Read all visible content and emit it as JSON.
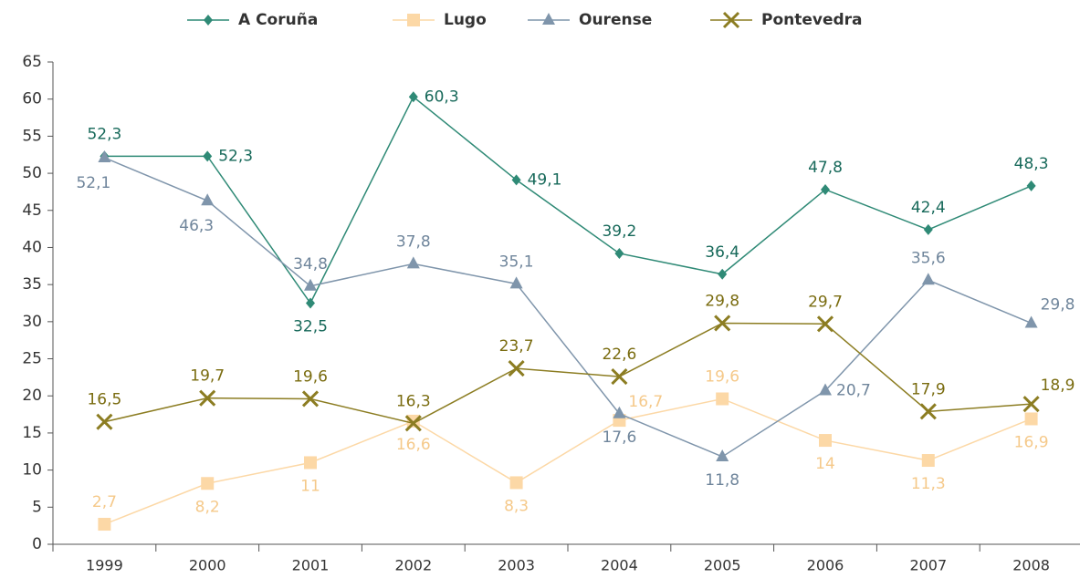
{
  "chart_data": {
    "type": "line",
    "categories": [
      "1999",
      "2000",
      "2001",
      "2002",
      "2003",
      "2004",
      "2005",
      "2006",
      "2007",
      "2008"
    ],
    "series": [
      {
        "name": "A Coruña",
        "color": "#2f8a76",
        "label_color": "#17695a",
        "marker": "diamond",
        "values": [
          52.3,
          52.3,
          32.5,
          60.3,
          49.1,
          39.2,
          36.4,
          47.8,
          42.4,
          48.3
        ],
        "value_labels": [
          "52,3",
          "52,3",
          "32,5",
          "60,3",
          "49,1",
          "39,2",
          "36,4",
          "47,8",
          "42,4",
          "48,3"
        ]
      },
      {
        "name": "Lugo",
        "color": "#fcd8a6",
        "label_color": "#f5c98a",
        "marker": "square",
        "values": [
          2.7,
          8.2,
          11,
          16.6,
          8.3,
          16.7,
          19.6,
          14,
          11.3,
          16.9
        ],
        "value_labels": [
          "2,7",
          "8,2",
          "11",
          "16,6",
          "8,3",
          "16,7",
          "19,6",
          "14",
          "11,3",
          "16,9"
        ]
      },
      {
        "name": "Ourense",
        "color": "#7f95ab",
        "label_color": "#6f859b",
        "marker": "triangle",
        "values": [
          52.1,
          46.3,
          34.8,
          37.8,
          35.1,
          17.6,
          11.8,
          20.7,
          35.6,
          29.8
        ],
        "value_labels": [
          "52,1",
          "46,3",
          "34,8",
          "37,8",
          "35,1",
          "17,6",
          "11,8",
          "20,7",
          "35,6",
          "29,8"
        ]
      },
      {
        "name": "Pontevedra",
        "color": "#8c7d22",
        "label_color": "#7a6c10",
        "marker": "x",
        "values": [
          16.5,
          19.7,
          19.6,
          16.3,
          23.7,
          22.6,
          29.8,
          29.7,
          17.9,
          18.9
        ],
        "value_labels": [
          "16,5",
          "19,7",
          "19,6",
          "16,3",
          "23,7",
          "22,6",
          "29,8",
          "29,7",
          "17,9",
          "18,9"
        ]
      }
    ],
    "ylim": [
      0,
      65
    ],
    "yticks": [
      0,
      5,
      10,
      15,
      20,
      25,
      30,
      35,
      40,
      45,
      50,
      55,
      60,
      65
    ],
    "legend": "top"
  }
}
